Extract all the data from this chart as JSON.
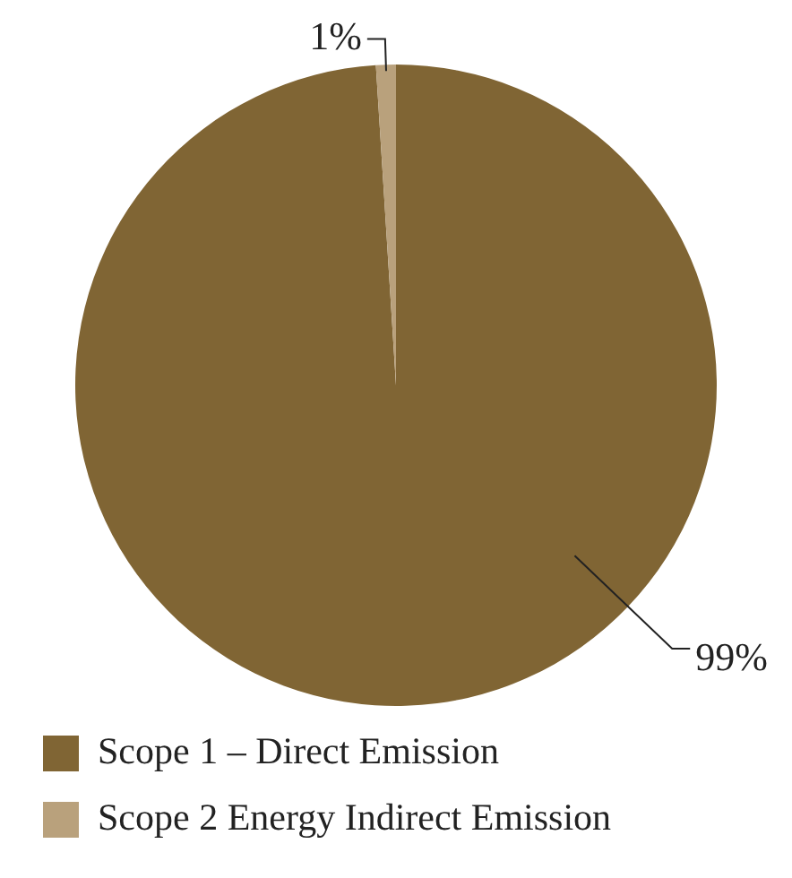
{
  "chart_data": {
    "type": "pie",
    "categories": [
      "Scope 1 – Direct Emission",
      "Scope 2 Energy Indirect Emission"
    ],
    "values": [
      99,
      1
    ],
    "colors": [
      "#806534",
      "#b9a17c"
    ],
    "data_labels": true,
    "value_labels": [
      "99%",
      "1%"
    ],
    "legend": "bottom"
  }
}
